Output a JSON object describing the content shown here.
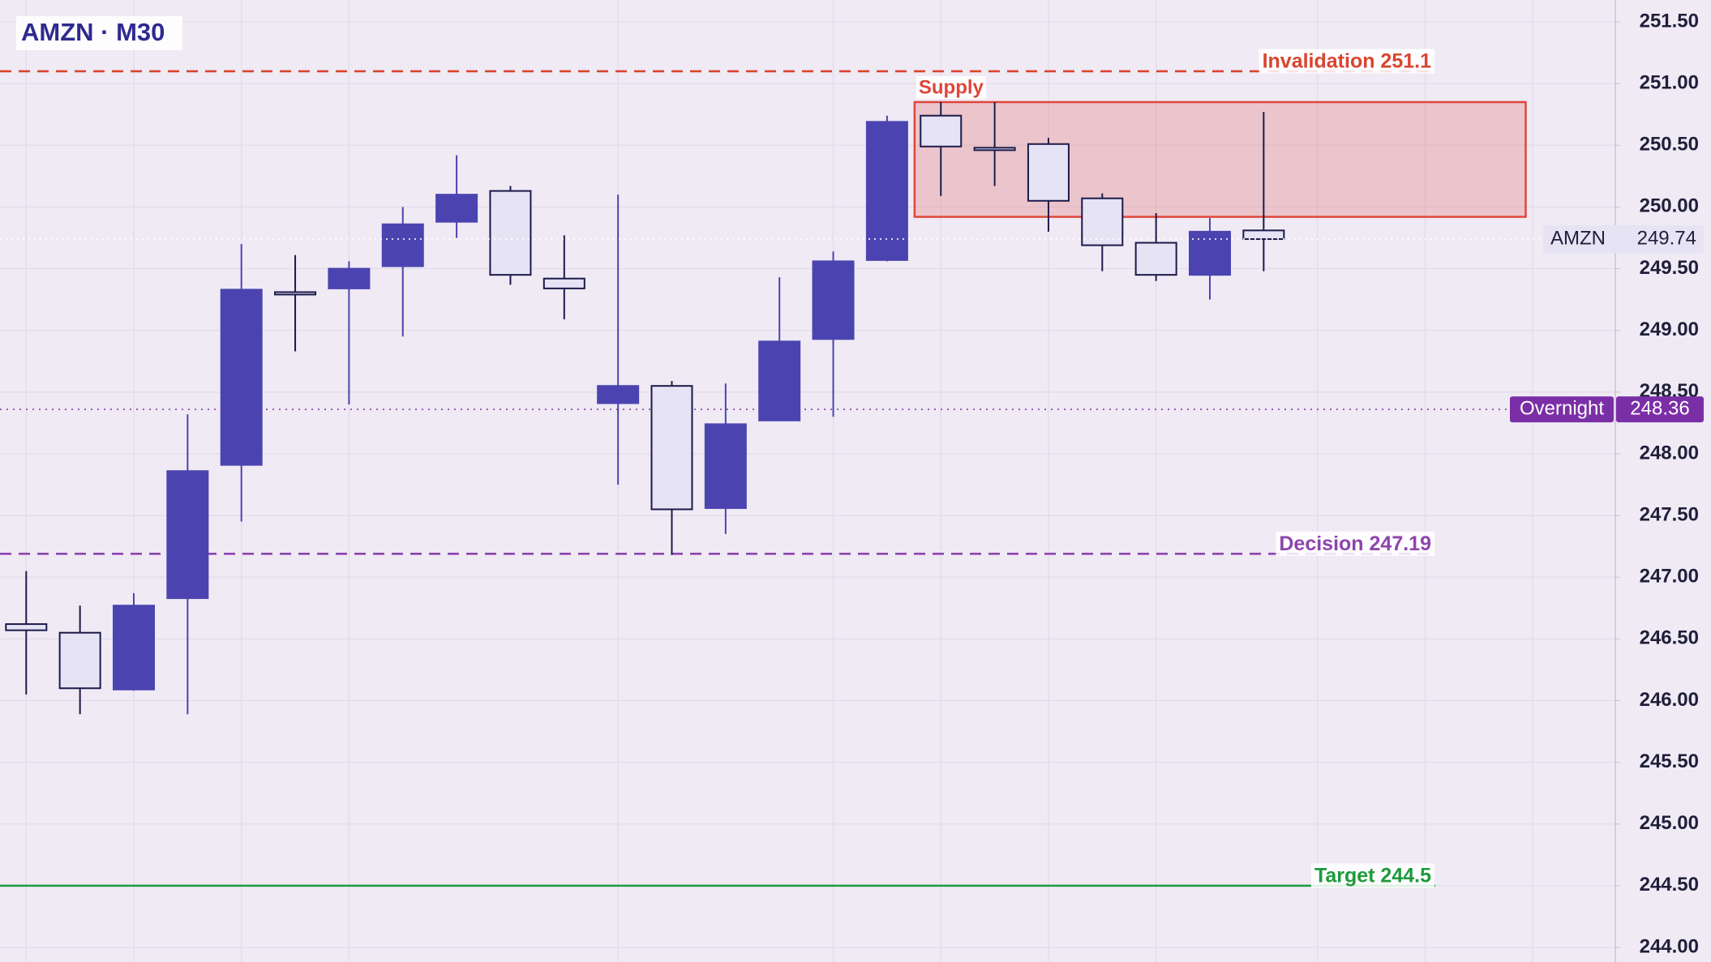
{
  "chart_data": {
    "type": "candlestick",
    "title": "AMZN · M30",
    "symbol": "AMZN",
    "candles": {
      "open": [
        246.62,
        246.55,
        246.09,
        246.83,
        247.91,
        249.31,
        249.34,
        249.52,
        249.88,
        250.13,
        249.42,
        248.41,
        248.55,
        247.56,
        248.27,
        248.93,
        249.57,
        250.74,
        250.48,
        250.51,
        250.07,
        249.71,
        249.45,
        249.81
      ],
      "high": [
        247.05,
        246.77,
        246.87,
        248.32,
        249.7,
        249.61,
        249.56,
        250.0,
        250.42,
        250.17,
        249.77,
        250.1,
        248.59,
        248.57,
        249.43,
        249.64,
        250.74,
        250.85,
        250.85,
        250.56,
        250.11,
        249.95,
        249.91,
        250.77
      ],
      "low": [
        246.05,
        245.89,
        246.08,
        245.89,
        247.45,
        248.83,
        248.4,
        248.95,
        249.75,
        249.37,
        249.09,
        247.75,
        247.18,
        247.35,
        248.27,
        248.3,
        249.56,
        250.09,
        250.17,
        249.8,
        249.48,
        249.4,
        249.25,
        249.48
      ],
      "close": [
        246.57,
        246.1,
        246.77,
        247.86,
        249.33,
        249.31,
        249.5,
        249.86,
        250.1,
        249.45,
        249.34,
        248.55,
        247.55,
        248.24,
        248.91,
        249.56,
        250.69,
        250.49,
        250.48,
        250.05,
        249.69,
        249.45,
        249.8,
        249.74
      ]
    },
    "up_color": "#4b44b0",
    "down_color": "#e6e3f5",
    "ylim": [
      244.0,
      251.75
    ],
    "yticks": [
      {
        "value": 244.0,
        "label": "244.00"
      },
      {
        "value": 244.5,
        "label": "244.50"
      },
      {
        "value": 245.0,
        "label": "245.00"
      },
      {
        "value": 245.5,
        "label": "245.50"
      },
      {
        "value": 246.0,
        "label": "246.00"
      },
      {
        "value": 246.5,
        "label": "246.50"
      },
      {
        "value": 247.0,
        "label": "247.00"
      },
      {
        "value": 247.5,
        "label": "247.50"
      },
      {
        "value": 248.0,
        "label": "248.00"
      },
      {
        "value": 248.5,
        "label": "248.50"
      },
      {
        "value": 249.0,
        "label": "249.00"
      },
      {
        "value": 249.5,
        "label": "249.50"
      },
      {
        "value": 250.0,
        "label": "250.00"
      },
      {
        "value": 250.5,
        "label": "250.50"
      },
      {
        "value": 251.0,
        "label": "251.00"
      },
      {
        "value": 251.5,
        "label": "251.50"
      }
    ],
    "grid": true,
    "levels": [
      {
        "label": "Invalidation 251.1",
        "value": 251.1,
        "color": "#d9452f",
        "style": "dashed"
      },
      {
        "label": "Decision 247.19",
        "value": 247.19,
        "color": "#8e44ad",
        "style": "dashed"
      },
      {
        "label": "Target 244.5",
        "value": 244.5,
        "color": "#1e9a3c",
        "style": "solid"
      }
    ],
    "zone": {
      "label": "Supply",
      "top": 250.85,
      "bottom": 249.92,
      "color": "#e0453a"
    },
    "overnight": {
      "label": "Overnight",
      "value": 248.36,
      "color": "#7b2fa6"
    },
    "last_price": 249.74
  }
}
